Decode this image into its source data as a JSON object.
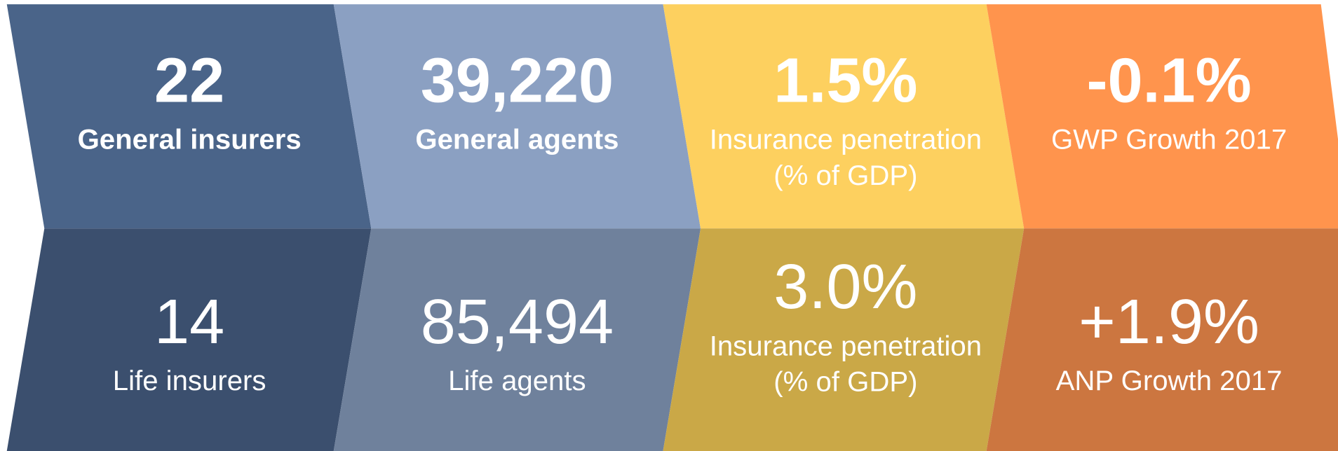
{
  "rows": [
    {
      "tiles": [
        {
          "value": "22",
          "label": [
            "General insurers"
          ]
        },
        {
          "value": "39,220",
          "label": [
            "General agents"
          ]
        },
        {
          "value": "1.5%",
          "label": [
            "Insurance penetration",
            "(% of GDP)"
          ]
        },
        {
          "value": "-0.1%",
          "label": [
            "GWP Growth 2017"
          ]
        }
      ]
    },
    {
      "tiles": [
        {
          "value": "14",
          "label": [
            "Life insurers"
          ]
        },
        {
          "value": "85,494",
          "label": [
            "Life agents"
          ]
        },
        {
          "value": "3.0%",
          "label": [
            "Insurance penetration",
            "(% of GDP)"
          ]
        },
        {
          "value": "+1.9%",
          "label": [
            "ANP Growth 2017"
          ]
        }
      ]
    }
  ]
}
